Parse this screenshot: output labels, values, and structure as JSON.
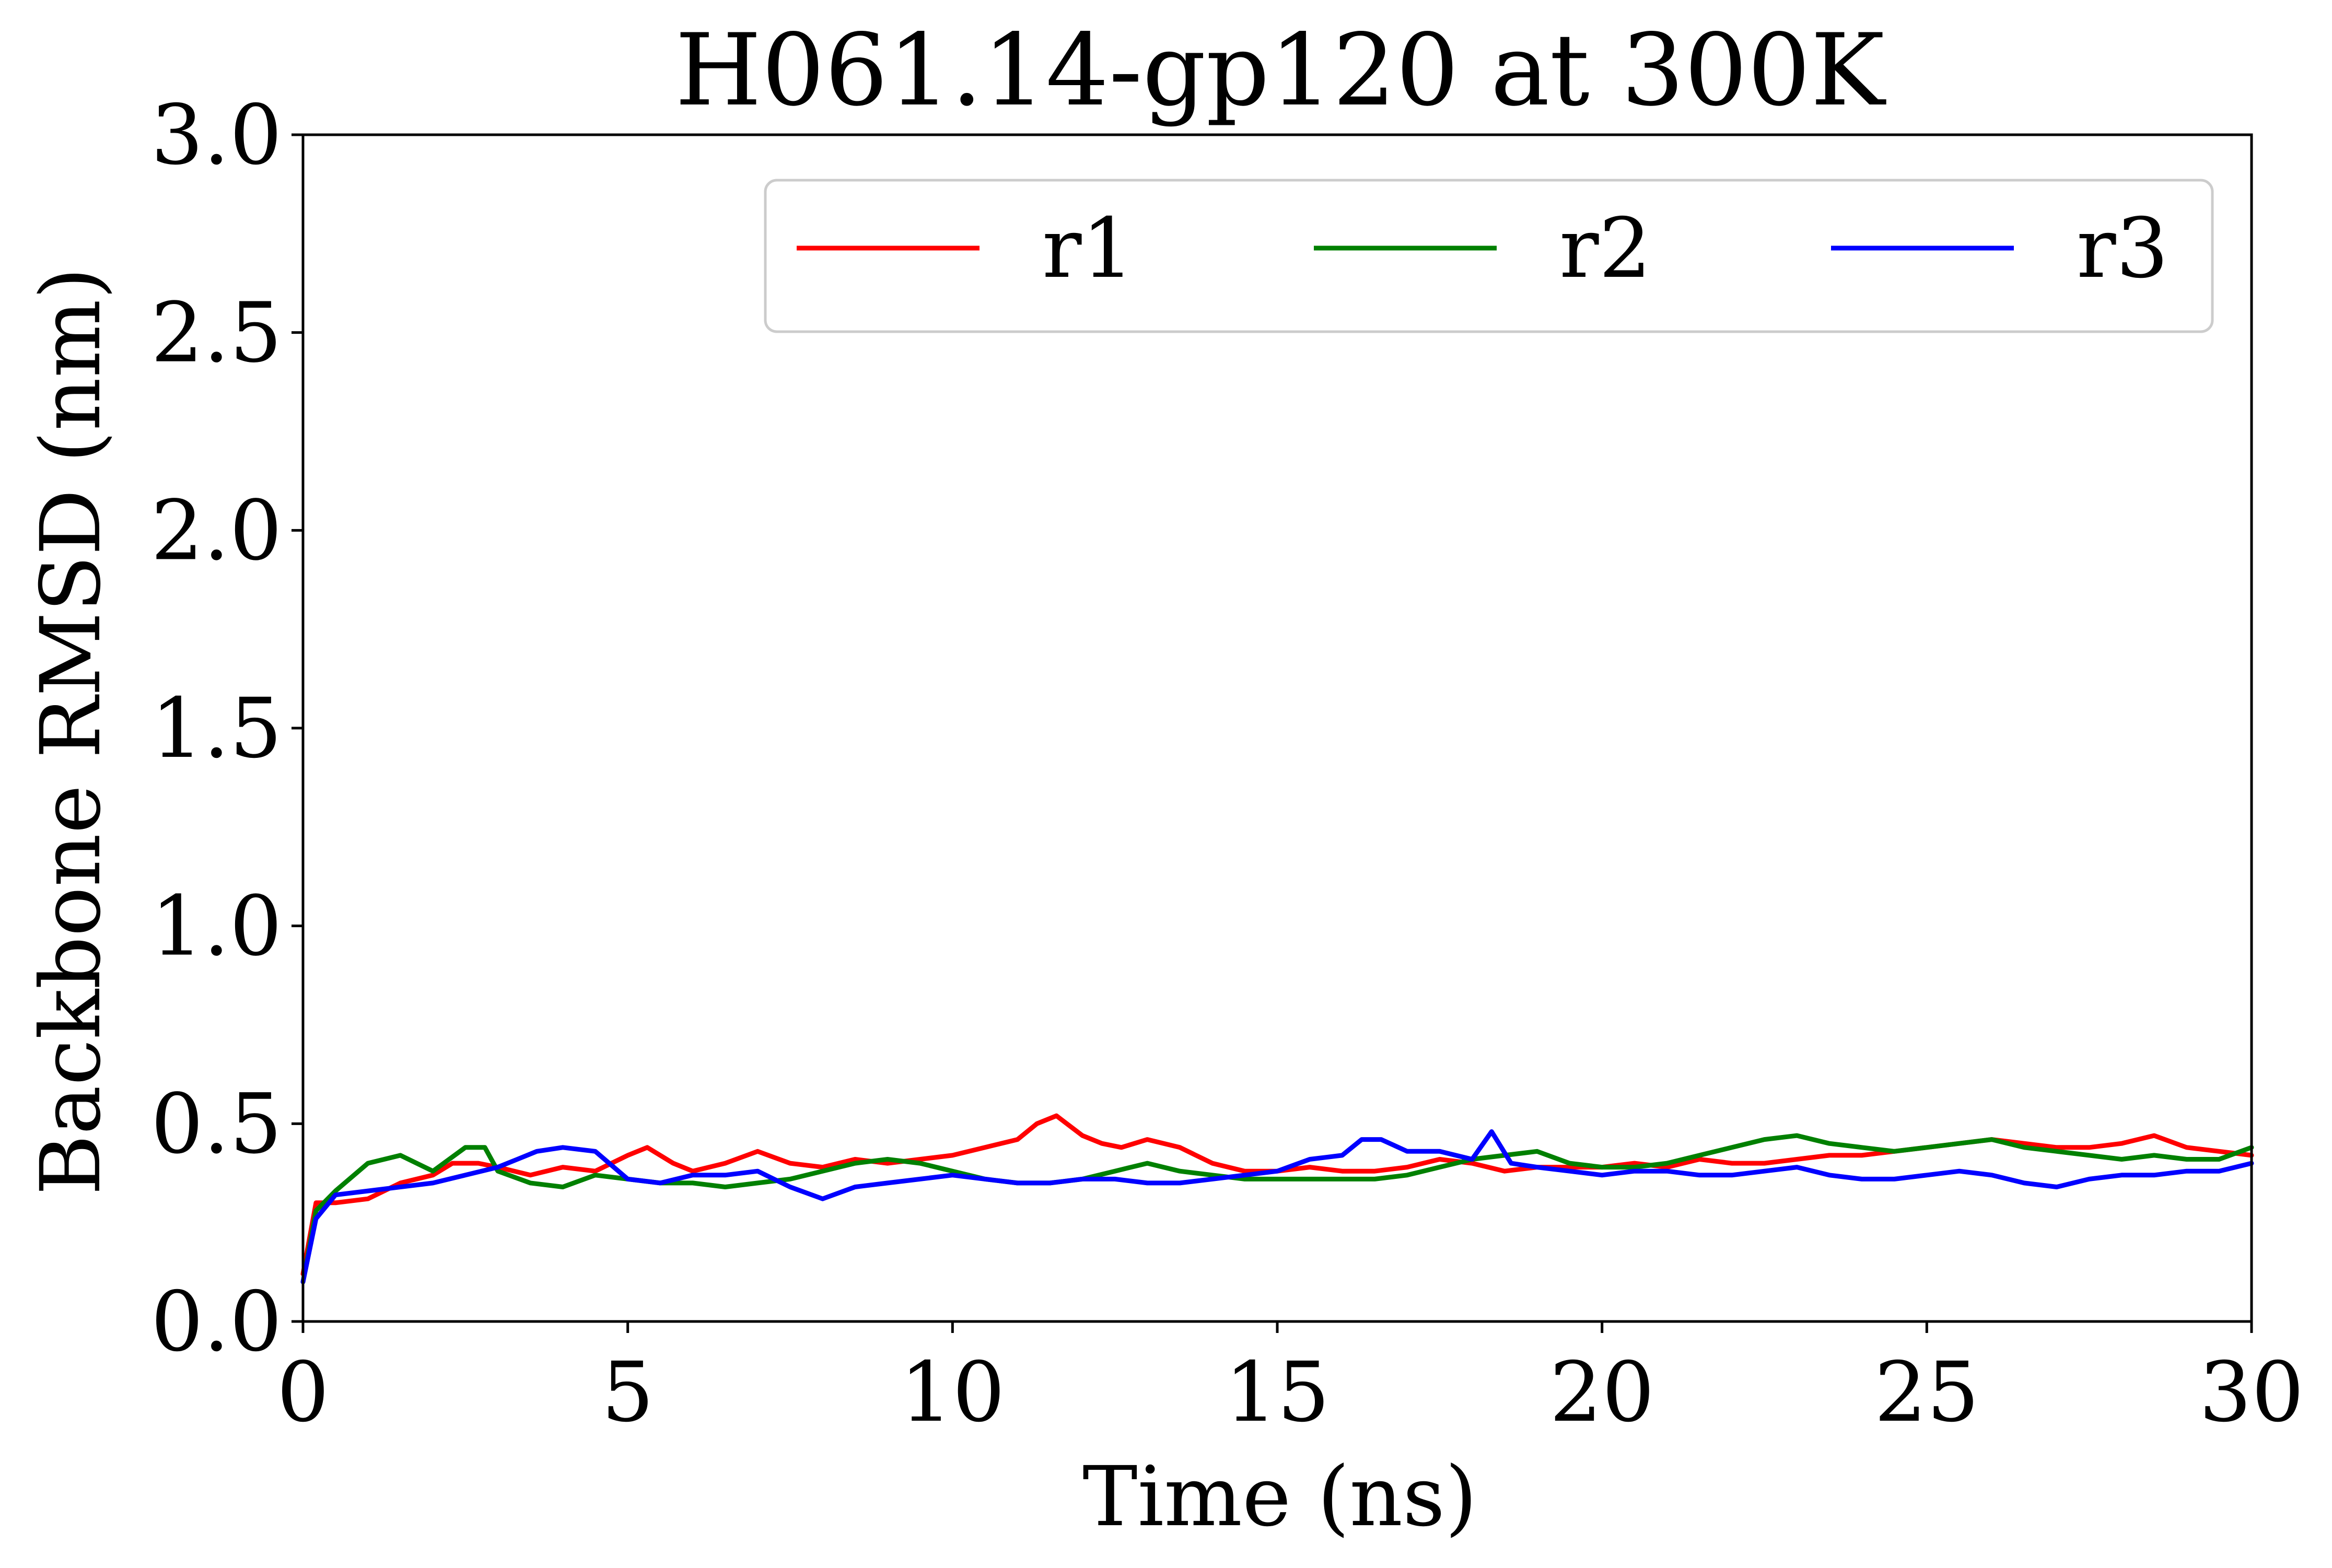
{
  "chart_data": {
    "type": "line",
    "title": "H061.14-gp120 at 300K",
    "xlabel": "Time (ns)",
    "ylabel": "Backbone RMSD (nm)",
    "xlim": [
      0,
      30
    ],
    "ylim": [
      0.0,
      3.0
    ],
    "xticks": [
      "0",
      "5",
      "10",
      "15",
      "20",
      "25",
      "30"
    ],
    "yticks": [
      "0.0",
      "0.5",
      "1.0",
      "1.5",
      "2.0",
      "2.5",
      "3.0"
    ],
    "grid": false,
    "legend": {
      "placement": "top-right",
      "columns": 3
    },
    "series": [
      {
        "name": "r1",
        "color": "#ff0000",
        "x": [
          0,
          0.2,
          0.5,
          1,
          1.5,
          2,
          2.3,
          2.7,
          3,
          3.5,
          4,
          4.5,
          5,
          5.3,
          5.7,
          6,
          6.5,
          7,
          7.5,
          8,
          8.5,
          9,
          9.5,
          10,
          10.5,
          11,
          11.3,
          11.6,
          12,
          12.3,
          12.6,
          13,
          13.5,
          14,
          14.5,
          15,
          15.5,
          16,
          16.5,
          17,
          17.5,
          18,
          18.5,
          19,
          19.5,
          20,
          20.5,
          21,
          21.5,
          22,
          22.5,
          23,
          23.5,
          24,
          24.5,
          25,
          25.5,
          26,
          26.5,
          27,
          27.5,
          28,
          28.5,
          29,
          29.5,
          30
        ],
        "y": [
          0.12,
          0.3,
          0.3,
          0.31,
          0.35,
          0.37,
          0.4,
          0.4,
          0.39,
          0.37,
          0.39,
          0.38,
          0.42,
          0.44,
          0.4,
          0.38,
          0.4,
          0.43,
          0.4,
          0.39,
          0.41,
          0.4,
          0.41,
          0.42,
          0.44,
          0.46,
          0.5,
          0.52,
          0.47,
          0.45,
          0.44,
          0.46,
          0.44,
          0.4,
          0.38,
          0.38,
          0.39,
          0.38,
          0.38,
          0.39,
          0.41,
          0.4,
          0.38,
          0.39,
          0.39,
          0.39,
          0.4,
          0.39,
          0.41,
          0.4,
          0.4,
          0.41,
          0.42,
          0.42,
          0.43,
          0.44,
          0.45,
          0.46,
          0.45,
          0.44,
          0.44,
          0.45,
          0.47,
          0.44,
          0.43,
          0.42
        ]
      },
      {
        "name": "r2",
        "color": "#008000",
        "x": [
          0,
          0.2,
          0.5,
          1,
          1.5,
          2,
          2.5,
          2.8,
          3,
          3.5,
          4,
          4.5,
          5,
          5.5,
          6,
          6.5,
          7,
          7.5,
          8,
          8.5,
          9,
          9.5,
          10,
          10.5,
          11,
          11.5,
          12,
          12.5,
          13,
          13.5,
          14,
          14.5,
          15,
          15.5,
          16,
          16.5,
          17,
          17.5,
          18,
          18.5,
          19,
          19.5,
          20,
          20.5,
          21,
          21.5,
          22,
          22.5,
          23,
          23.5,
          24,
          24.5,
          25,
          25.5,
          26,
          26.5,
          27,
          27.5,
          28,
          28.5,
          29,
          29.5,
          30
        ],
        "y": [
          0.1,
          0.28,
          0.33,
          0.4,
          0.42,
          0.38,
          0.44,
          0.44,
          0.38,
          0.35,
          0.34,
          0.37,
          0.36,
          0.35,
          0.35,
          0.34,
          0.35,
          0.36,
          0.38,
          0.4,
          0.41,
          0.4,
          0.38,
          0.36,
          0.35,
          0.35,
          0.36,
          0.38,
          0.4,
          0.38,
          0.37,
          0.36,
          0.36,
          0.36,
          0.36,
          0.36,
          0.37,
          0.39,
          0.41,
          0.42,
          0.43,
          0.4,
          0.39,
          0.39,
          0.4,
          0.42,
          0.44,
          0.46,
          0.47,
          0.45,
          0.44,
          0.43,
          0.44,
          0.45,
          0.46,
          0.44,
          0.43,
          0.42,
          0.41,
          0.42,
          0.41,
          0.41,
          0.44
        ]
      },
      {
        "name": "r3",
        "color": "#0000ff",
        "x": [
          0,
          0.2,
          0.5,
          1,
          1.5,
          2,
          2.5,
          3,
          3.3,
          3.6,
          4,
          4.5,
          5,
          5.5,
          6,
          6.5,
          7,
          7.5,
          8,
          8.5,
          9,
          9.5,
          10,
          10.5,
          11,
          11.5,
          12,
          12.5,
          13,
          13.5,
          14,
          14.5,
          15,
          15.5,
          16,
          16.3,
          16.6,
          17,
          17.5,
          18,
          18.3,
          18.6,
          19,
          19.5,
          20,
          20.5,
          21,
          21.5,
          22,
          22.5,
          23,
          23.5,
          24,
          24.5,
          25,
          25.5,
          26,
          26.5,
          27,
          27.5,
          28,
          28.5,
          29,
          29.5,
          30
        ],
        "y": [
          0.1,
          0.26,
          0.32,
          0.33,
          0.34,
          0.35,
          0.37,
          0.39,
          0.41,
          0.43,
          0.44,
          0.43,
          0.36,
          0.35,
          0.37,
          0.37,
          0.38,
          0.34,
          0.31,
          0.34,
          0.35,
          0.36,
          0.37,
          0.36,
          0.35,
          0.35,
          0.36,
          0.36,
          0.35,
          0.35,
          0.36,
          0.37,
          0.38,
          0.41,
          0.42,
          0.46,
          0.46,
          0.43,
          0.43,
          0.41,
          0.48,
          0.4,
          0.39,
          0.38,
          0.37,
          0.38,
          0.38,
          0.37,
          0.37,
          0.38,
          0.39,
          0.37,
          0.36,
          0.36,
          0.37,
          0.38,
          0.37,
          0.35,
          0.34,
          0.36,
          0.37,
          0.37,
          0.38,
          0.38,
          0.4
        ]
      }
    ]
  }
}
